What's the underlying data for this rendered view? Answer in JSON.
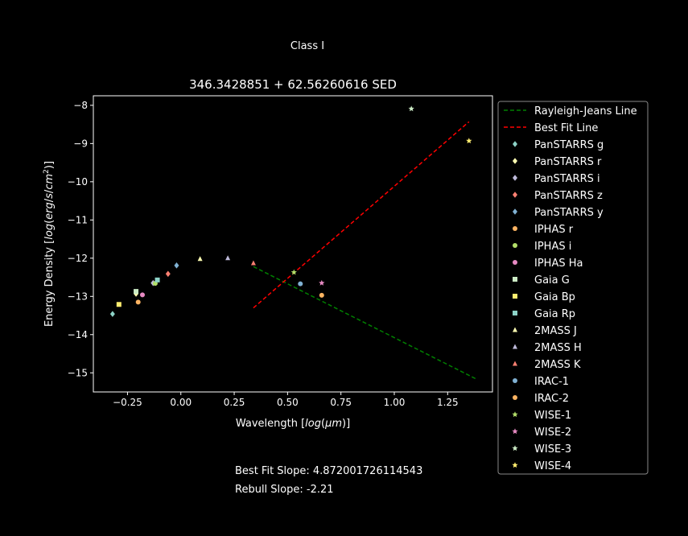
{
  "figure": {
    "suptitle": "Class I",
    "notes": [
      "Best Fit Slope: 4.872001726114543",
      "Rebull Slope: -2.21"
    ]
  },
  "chart_data": {
    "type": "scatter",
    "title": "346.3428851 + 62.56260616 SED",
    "xlabel": "Wavelength [log(μm)]",
    "ylabel": "Energy Density [log(erg/s/cm²)]",
    "xlim": [
      -0.41,
      1.46
    ],
    "ylim": [
      -15.5,
      -7.75
    ],
    "xticks": [
      -0.25,
      0.0,
      0.25,
      0.5,
      0.75,
      1.0,
      1.25
    ],
    "xtick_labels": [
      "−0.25",
      "0.00",
      "0.25",
      "0.50",
      "0.75",
      "1.00",
      "1.25"
    ],
    "yticks": [
      -8,
      -9,
      -10,
      -11,
      -12,
      -13,
      -14,
      -15
    ],
    "ytick_labels": [
      "−8",
      "−9",
      "−10",
      "−11",
      "−12",
      "−13",
      "−14",
      "−15"
    ],
    "grid": false,
    "legend_position": "outside-right",
    "lines": [
      {
        "name": "Rayleigh-Jeans Line",
        "color": "#008000",
        "dash": true,
        "x": [
          0.34,
          1.38
        ],
        "y": [
          -12.22,
          -15.15
        ]
      },
      {
        "name": "Best Fit Line",
        "color": "#ff0000",
        "dash": true,
        "x": [
          0.34,
          1.35
        ],
        "y": [
          -13.3,
          -8.43
        ]
      }
    ],
    "series": [
      {
        "name": "PanSTARRS g",
        "marker": "diamond",
        "color": "#8dd3c7",
        "x": [
          -0.32
        ],
        "y": [
          -13.46
        ]
      },
      {
        "name": "PanSTARRS r",
        "marker": "diamond",
        "color": "#ffffb3",
        "x": [
          -0.21
        ],
        "y": [
          -12.93
        ]
      },
      {
        "name": "PanSTARRS i",
        "marker": "diamond",
        "color": "#bebada",
        "x": [
          -0.13
        ],
        "y": [
          -12.65
        ]
      },
      {
        "name": "PanSTARRS z",
        "marker": "diamond",
        "color": "#fb8072",
        "x": [
          -0.06
        ],
        "y": [
          -12.41
        ]
      },
      {
        "name": "PanSTARRS y",
        "marker": "diamond",
        "color": "#80b1d3",
        "x": [
          -0.02
        ],
        "y": [
          -12.19
        ]
      },
      {
        "name": "IPHAS r",
        "marker": "circle",
        "color": "#fdb462",
        "x": [
          -0.2
        ],
        "y": [
          -13.15
        ]
      },
      {
        "name": "IPHAS i",
        "marker": "circle",
        "color": "#b3de69",
        "x": [
          -0.12
        ],
        "y": [
          -12.66
        ]
      },
      {
        "name": "IPHAS Ha",
        "marker": "circle",
        "color": "#e78ac3",
        "x": [
          -0.18
        ],
        "y": [
          -12.96
        ]
      },
      {
        "name": "Gaia G",
        "marker": "square",
        "color": "#ccebc5",
        "x": [
          -0.21
        ],
        "y": [
          -12.87
        ]
      },
      {
        "name": "Gaia Bp",
        "marker": "square",
        "color": "#ffed6f",
        "x": [
          -0.29
        ],
        "y": [
          -13.21
        ]
      },
      {
        "name": "Gaia Rp",
        "marker": "square",
        "color": "#8dd3c7",
        "x": [
          -0.11
        ],
        "y": [
          -12.57
        ]
      },
      {
        "name": "2MASS J",
        "marker": "triangle",
        "color": "#ffffb3",
        "x": [
          0.09
        ],
        "y": [
          -12.02
        ]
      },
      {
        "name": "2MASS H",
        "marker": "triangle",
        "color": "#bebada",
        "x": [
          0.22
        ],
        "y": [
          -12.0
        ]
      },
      {
        "name": "2MASS K",
        "marker": "triangle",
        "color": "#fb8072",
        "x": [
          0.34
        ],
        "y": [
          -12.13
        ]
      },
      {
        "name": "IRAC-1",
        "marker": "circle",
        "color": "#80b1d3",
        "x": [
          0.56
        ],
        "y": [
          -12.67
        ]
      },
      {
        "name": "IRAC-2",
        "marker": "circle",
        "color": "#fdb462",
        "x": [
          0.66
        ],
        "y": [
          -12.97
        ]
      },
      {
        "name": "WISE-1",
        "marker": "star",
        "color": "#b3de69",
        "x": [
          0.53
        ],
        "y": [
          -12.37
        ]
      },
      {
        "name": "WISE-2",
        "marker": "star",
        "color": "#e78ac3",
        "x": [
          0.66
        ],
        "y": [
          -12.65
        ]
      },
      {
        "name": "WISE-3",
        "marker": "star",
        "color": "#ccebc5",
        "x": [
          1.08
        ],
        "y": [
          -8.09
        ]
      },
      {
        "name": "WISE-4",
        "marker": "star",
        "color": "#ffed6f",
        "x": [
          1.35
        ],
        "y": [
          -8.93
        ]
      }
    ]
  }
}
